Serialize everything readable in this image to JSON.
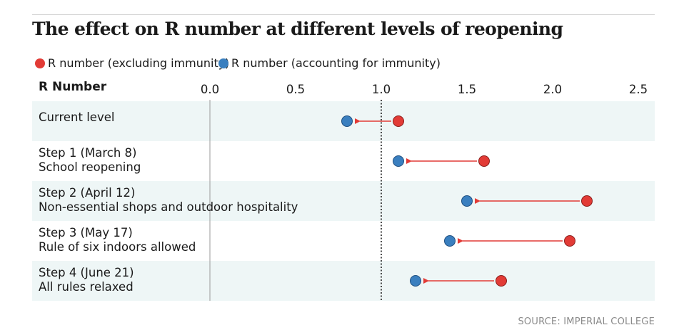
{
  "title": "The effect on R number at different levels of reopening",
  "header_label": "R Number",
  "source": "SOURCE: IMPERIAL COLLEGE",
  "colors": {
    "excluding": "#e23b36",
    "accounting": "#3a7fbf",
    "band": "#eef6f6",
    "arrow": "#e23b36"
  },
  "chart_data": {
    "type": "dot-arrow",
    "xlim": [
      0,
      2.6
    ],
    "xticks": [
      {
        "value": 0.0,
        "label": "0.0"
      },
      {
        "value": 0.5,
        "label": "0.5"
      },
      {
        "value": 1.0,
        "label": "1.0"
      },
      {
        "value": 1.5,
        "label": "1.5"
      },
      {
        "value": 2.0,
        "label": "2.0"
      },
      {
        "value": 2.5,
        "label": "2.5"
      }
    ],
    "reference_line": 1.0,
    "legend": [
      {
        "key": "excluding",
        "label": "R number (excluding immunity)"
      },
      {
        "key": "accounting",
        "label": "R number (accounting for immunity)"
      }
    ],
    "rows": [
      {
        "lines": [
          "Current level"
        ],
        "excluding": 1.1,
        "accounting": 0.8
      },
      {
        "lines": [
          "Step 1 (March 8)",
          "School reopening"
        ],
        "excluding": 1.6,
        "accounting": 1.1
      },
      {
        "lines": [
          "Step 2 (April 12)",
          "Non-essential shops and outdoor hospitality"
        ],
        "excluding": 2.2,
        "accounting": 1.5
      },
      {
        "lines": [
          "Step 3 (May 17)",
          "Rule of six indoors allowed"
        ],
        "excluding": 2.1,
        "accounting": 1.4
      },
      {
        "lines": [
          "Step 4 (June 21)",
          "All rules relaxed"
        ],
        "excluding": 1.7,
        "accounting": 1.2
      }
    ]
  }
}
